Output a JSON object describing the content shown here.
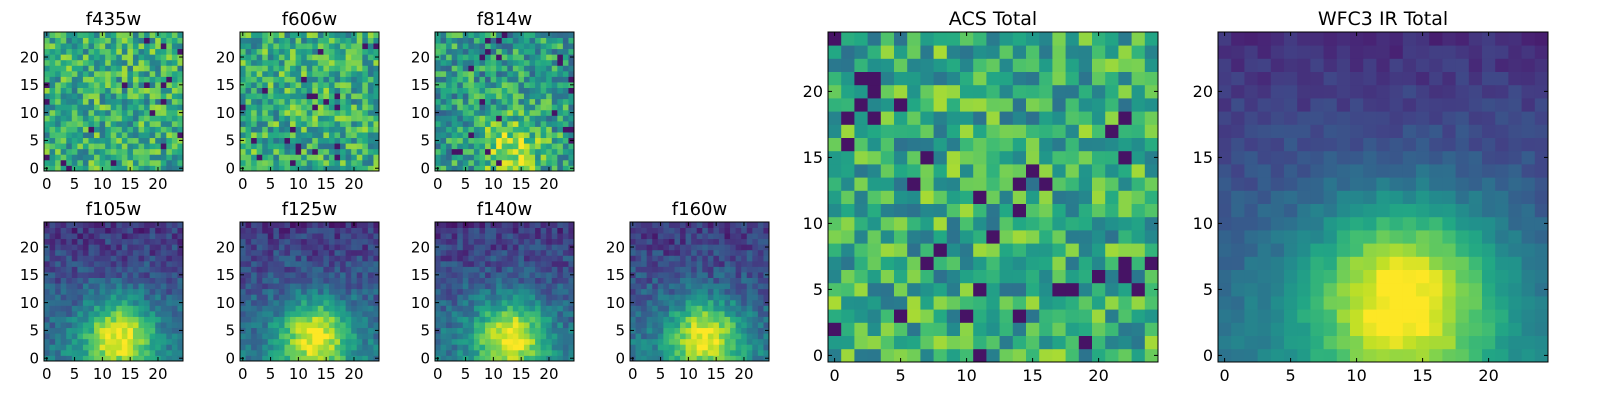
{
  "chart_data": [
    {
      "type": "heatmap",
      "title": "f435w",
      "grid_size": 25,
      "xlim": [
        0,
        25
      ],
      "ylim": [
        0,
        25
      ],
      "xticks": [
        0,
        5,
        10,
        15,
        20
      ],
      "yticks": [
        0,
        5,
        10,
        15,
        20
      ],
      "colormap": "viridis",
      "pattern": "noise",
      "center": [
        13,
        3.5
      ],
      "sigma": 4.0,
      "noise": 0.25
    },
    {
      "type": "heatmap",
      "title": "f606w",
      "grid_size": 25,
      "xlim": [
        0,
        25
      ],
      "ylim": [
        0,
        25
      ],
      "xticks": [
        0,
        5,
        10,
        15,
        20
      ],
      "yticks": [
        0,
        5,
        10,
        15,
        20
      ],
      "colormap": "viridis",
      "pattern": "noise",
      "center": [
        13,
        3.5
      ],
      "sigma": 4.0,
      "noise": 0.25
    },
    {
      "type": "heatmap",
      "title": "f814w",
      "grid_size": 25,
      "xlim": [
        0,
        25
      ],
      "ylim": [
        0,
        25
      ],
      "xticks": [
        0,
        5,
        10,
        15,
        20
      ],
      "yticks": [
        0,
        5,
        10,
        15,
        20
      ],
      "colormap": "viridis",
      "pattern": "faint-source",
      "center": [
        13,
        3.5
      ],
      "sigma": 4.0,
      "noise": 0.25
    },
    {
      "type": "heatmap",
      "title": "f105w",
      "grid_size": 25,
      "xlim": [
        0,
        25
      ],
      "ylim": [
        0,
        25
      ],
      "xticks": [
        0,
        5,
        10,
        15,
        20
      ],
      "yticks": [
        0,
        5,
        10,
        15,
        20
      ],
      "colormap": "viridis",
      "pattern": "source",
      "center": [
        13,
        4
      ],
      "sigma": 4.5,
      "noise": 0.12
    },
    {
      "type": "heatmap",
      "title": "f125w",
      "grid_size": 25,
      "xlim": [
        0,
        25
      ],
      "ylim": [
        0,
        25
      ],
      "xticks": [
        0,
        5,
        10,
        15,
        20
      ],
      "yticks": [
        0,
        5,
        10,
        15,
        20
      ],
      "colormap": "viridis",
      "pattern": "source",
      "center": [
        13,
        4
      ],
      "sigma": 4.5,
      "noise": 0.12
    },
    {
      "type": "heatmap",
      "title": "f140w",
      "grid_size": 25,
      "xlim": [
        0,
        25
      ],
      "ylim": [
        0,
        25
      ],
      "xticks": [
        0,
        5,
        10,
        15,
        20
      ],
      "yticks": [
        0,
        5,
        10,
        15,
        20
      ],
      "colormap": "viridis",
      "pattern": "source",
      "center": [
        13,
        4
      ],
      "sigma": 4.5,
      "noise": 0.12
    },
    {
      "type": "heatmap",
      "title": "f160w",
      "grid_size": 25,
      "xlim": [
        0,
        25
      ],
      "ylim": [
        0,
        25
      ],
      "xticks": [
        0,
        5,
        10,
        15,
        20
      ],
      "yticks": [
        0,
        5,
        10,
        15,
        20
      ],
      "colormap": "viridis",
      "pattern": "source",
      "center": [
        13,
        4
      ],
      "sigma": 4.5,
      "noise": 0.12
    },
    {
      "type": "heatmap",
      "title": "ACS Total",
      "grid_size": 25,
      "xlim": [
        0,
        25
      ],
      "ylim": [
        0,
        25
      ],
      "xticks": [
        0,
        5,
        10,
        15,
        20
      ],
      "yticks": [
        0,
        5,
        10,
        15,
        20
      ],
      "colormap": "viridis",
      "pattern": "noise",
      "center": [
        13,
        4
      ],
      "sigma": 4.0,
      "noise": 0.25
    },
    {
      "type": "heatmap",
      "title": "WFC3 IR Total",
      "grid_size": 25,
      "xlim": [
        0,
        25
      ],
      "ylim": [
        0,
        25
      ],
      "xticks": [
        0,
        5,
        10,
        15,
        20
      ],
      "yticks": [
        0,
        5,
        10,
        15,
        20
      ],
      "colormap": "viridis",
      "pattern": "smooth-source",
      "center": [
        13.5,
        4.5
      ],
      "sigma": 5.0,
      "noise": 0.05
    }
  ],
  "colors": {
    "viridis": [
      "#440154",
      "#482475",
      "#414487",
      "#355f8d",
      "#2a788e",
      "#21918c",
      "#22a884",
      "#44bf70",
      "#7ad151",
      "#bddf26",
      "#fde725"
    ]
  }
}
